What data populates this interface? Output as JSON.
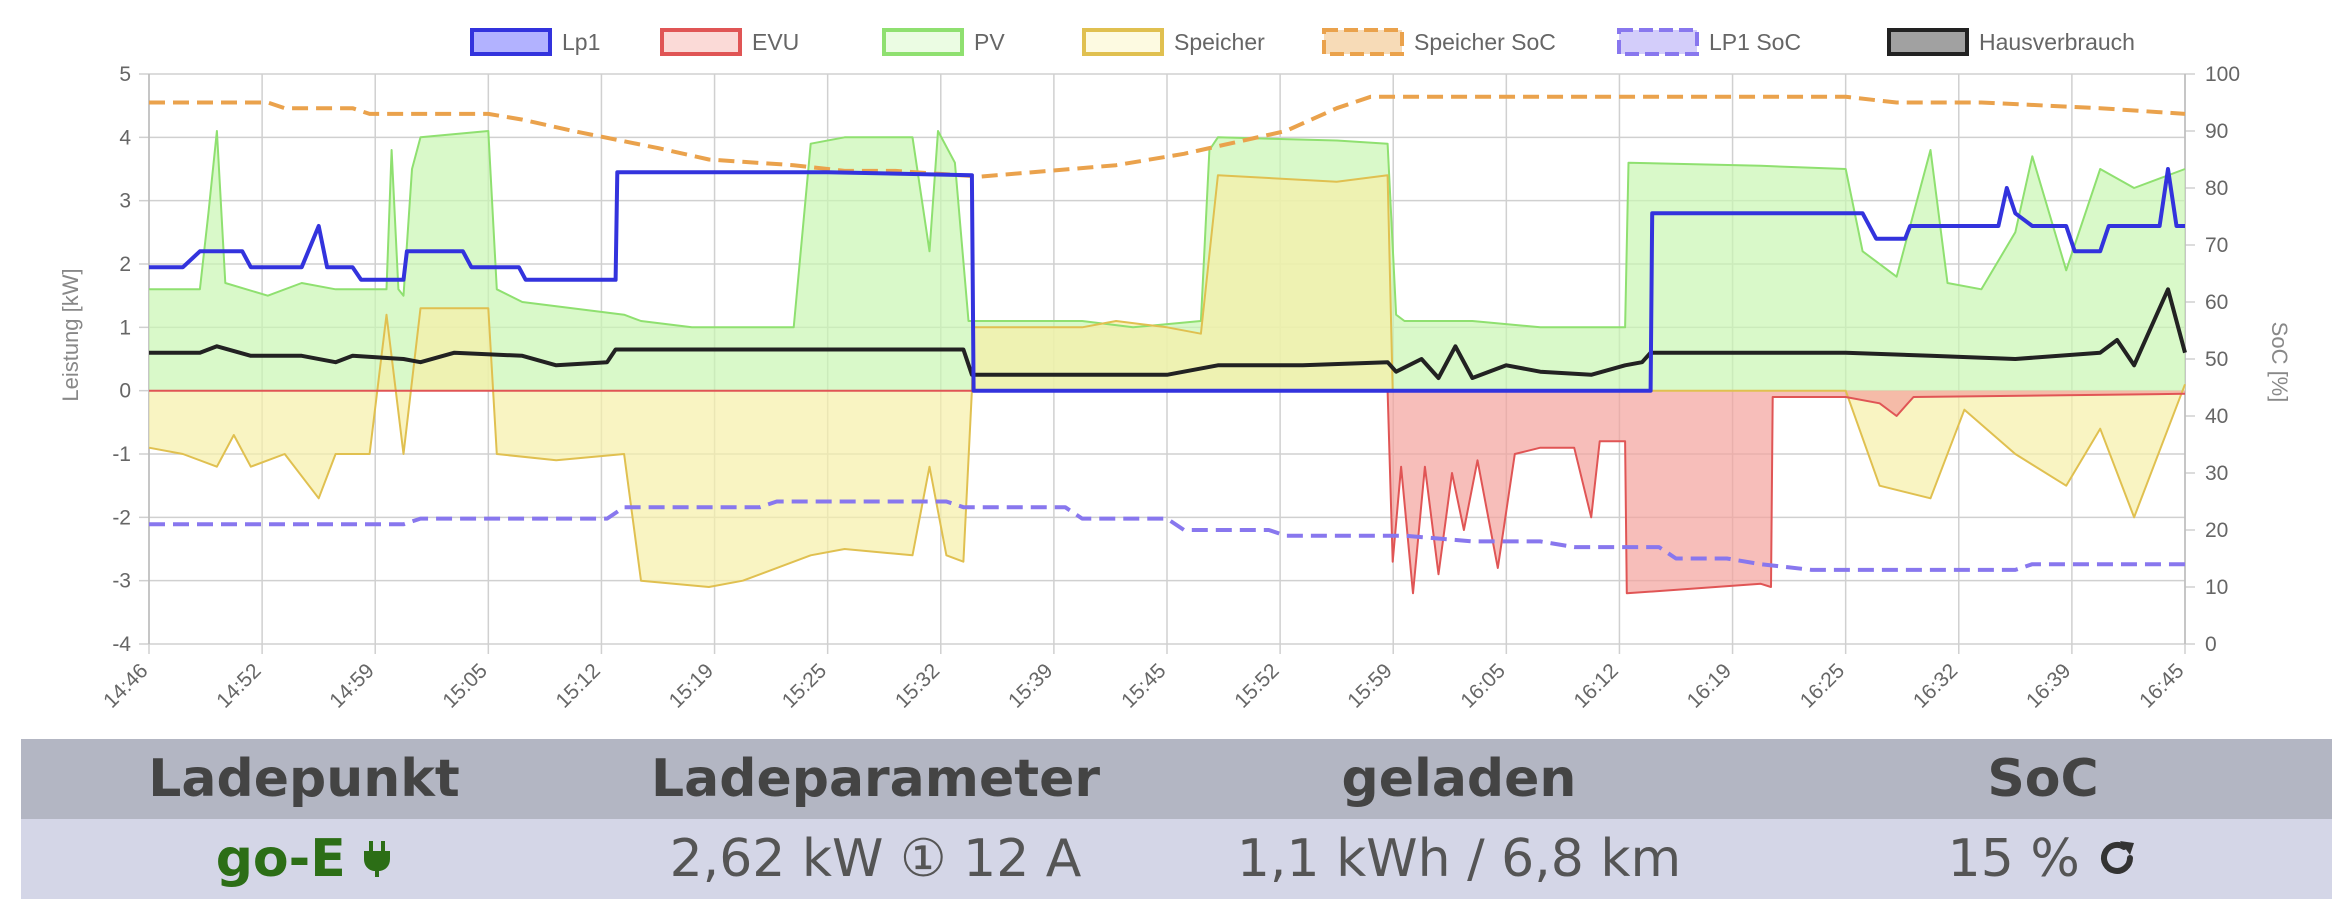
{
  "legend": [
    {
      "label": "Lp1",
      "color": "#3333dd",
      "fill": "#6666ff",
      "dashed": false
    },
    {
      "label": "EVU",
      "color": "#e05555",
      "fill": "#f7b5b0",
      "dashed": false
    },
    {
      "label": "PV",
      "color": "#8fe070",
      "fill": "#d8fac8",
      "dashed": false
    },
    {
      "label": "Speicher",
      "color": "#e0c050",
      "fill": "#fbf6c3",
      "dashed": false
    },
    {
      "label": "Speicher SoC",
      "color": "#eaa24c",
      "fill": "#f0b870",
      "dashed": true
    },
    {
      "label": "LP1 SoC",
      "color": "#8877ee",
      "fill": "#a79cf5",
      "dashed": true
    },
    {
      "label": "Hausverbrauch",
      "color": "#222222",
      "fill": "#444444",
      "dashed": false
    }
  ],
  "chart_data": {
    "type": "line",
    "title": "",
    "xlabel": "",
    "ylabel": "Leistung [kW]",
    "y2label": "SoC [%]",
    "ylim": [
      -4,
      5
    ],
    "y2lim": [
      0,
      100
    ],
    "x": [
      "14:46",
      "14:52",
      "14:59",
      "15:05",
      "15:12",
      "15:19",
      "15:25",
      "15:32",
      "15:39",
      "15:45",
      "15:52",
      "15:59",
      "16:05",
      "16:12",
      "16:19",
      "16:25",
      "16:32",
      "16:39",
      "16:45"
    ],
    "yticks": [
      "5",
      "4",
      "3",
      "2",
      "1",
      "0",
      "-1",
      "-2",
      "-3",
      "-4"
    ],
    "y2ticks": [
      "100",
      "90",
      "80",
      "70",
      "60",
      "50",
      "40",
      "30",
      "20",
      "10",
      "0"
    ],
    "grid": true,
    "legend_position": "top",
    "series": [
      {
        "name": "Lp1",
        "axis": "left",
        "values": [
          [
            0,
            1.95
          ],
          [
            2,
            1.95
          ],
          [
            3,
            2.2
          ],
          [
            5.5,
            2.2
          ],
          [
            6,
            1.95
          ],
          [
            9,
            1.95
          ],
          [
            10,
            2.6
          ],
          [
            10.5,
            1.95
          ],
          [
            12,
            1.95
          ],
          [
            12.5,
            1.75
          ],
          [
            15,
            1.75
          ],
          [
            15.2,
            2.2
          ],
          [
            18.5,
            2.2
          ],
          [
            19,
            1.95
          ],
          [
            21.8,
            1.95
          ],
          [
            22.2,
            1.75
          ],
          [
            27.5,
            1.75
          ],
          [
            27.6,
            3.45
          ],
          [
            40,
            3.45
          ],
          [
            48.5,
            3.4
          ],
          [
            48.6,
            0
          ],
          [
            88.5,
            0
          ],
          [
            88.6,
            2.8
          ],
          [
            101,
            2.8
          ],
          [
            101.8,
            2.4
          ],
          [
            103.5,
            2.4
          ],
          [
            103.8,
            2.6
          ],
          [
            109,
            2.6
          ],
          [
            109.5,
            3.2
          ],
          [
            110,
            2.8
          ],
          [
            111,
            2.6
          ],
          [
            113,
            2.6
          ],
          [
            113.5,
            2.2
          ],
          [
            115,
            2.2
          ],
          [
            115.5,
            2.6
          ],
          [
            117,
            2.6
          ],
          [
            118.5,
            2.6
          ],
          [
            119,
            3.5
          ],
          [
            119.5,
            2.6
          ],
          [
            120,
            2.6
          ]
        ]
      },
      {
        "name": "EVU",
        "axis": "left",
        "values": [
          [
            0,
            0
          ],
          [
            73,
            0
          ],
          [
            73.3,
            -2.7
          ],
          [
            73.8,
            -1.2
          ],
          [
            74.5,
            -3.2
          ],
          [
            75.2,
            -1.2
          ],
          [
            76,
            -2.9
          ],
          [
            76.8,
            -1.3
          ],
          [
            77.5,
            -2.2
          ],
          [
            78.3,
            -1.1
          ],
          [
            79.5,
            -2.8
          ],
          [
            80.5,
            -1.0
          ],
          [
            82,
            -0.9
          ],
          [
            84,
            -0.9
          ],
          [
            85,
            -2.0
          ],
          [
            85.5,
            -0.8
          ],
          [
            87,
            -0.8
          ],
          [
            87.1,
            -3.2
          ],
          [
            95,
            -3.05
          ],
          [
            95.6,
            -3.1
          ],
          [
            95.7,
            -0.1
          ],
          [
            100,
            -0.1
          ],
          [
            102,
            -0.2
          ],
          [
            103,
            -0.4
          ],
          [
            104,
            -0.1
          ],
          [
            120,
            -0.05
          ]
        ]
      },
      {
        "name": "PV",
        "axis": "left",
        "values": [
          [
            0,
            1.6
          ],
          [
            3,
            1.6
          ],
          [
            3.5,
            2.8
          ],
          [
            4,
            4.1
          ],
          [
            4.5,
            1.7
          ],
          [
            7,
            1.5
          ],
          [
            9,
            1.7
          ],
          [
            11,
            1.6
          ],
          [
            14,
            1.6
          ],
          [
            14.3,
            3.8
          ],
          [
            14.7,
            1.6
          ],
          [
            15,
            1.5
          ],
          [
            15.5,
            3.5
          ],
          [
            16,
            4.0
          ],
          [
            20,
            4.1
          ],
          [
            20.5,
            1.6
          ],
          [
            22,
            1.4
          ],
          [
            28,
            1.2
          ],
          [
            29,
            1.1
          ],
          [
            32,
            1.0
          ],
          [
            38,
            1.0
          ],
          [
            39,
            3.9
          ],
          [
            41,
            4.0
          ],
          [
            45,
            4.0
          ],
          [
            46,
            2.2
          ],
          [
            46.5,
            4.1
          ],
          [
            47.5,
            3.6
          ],
          [
            48.3,
            1.1
          ],
          [
            55,
            1.1
          ],
          [
            58,
            1.0
          ],
          [
            62,
            1.1
          ],
          [
            62.5,
            3.8
          ],
          [
            63,
            4.0
          ],
          [
            70,
            3.95
          ],
          [
            73,
            3.9
          ],
          [
            73.5,
            1.2
          ],
          [
            74,
            1.1
          ],
          [
            78,
            1.1
          ],
          [
            82,
            1.0
          ],
          [
            85,
            1.0
          ],
          [
            87,
            1.0
          ],
          [
            87.2,
            3.6
          ],
          [
            95,
            3.55
          ],
          [
            100,
            3.5
          ],
          [
            101,
            2.2
          ],
          [
            103,
            1.8
          ],
          [
            105,
            3.8
          ],
          [
            106,
            1.7
          ],
          [
            108,
            1.6
          ],
          [
            110,
            2.5
          ],
          [
            111,
            3.7
          ],
          [
            113,
            1.9
          ],
          [
            115,
            3.5
          ],
          [
            117,
            3.2
          ],
          [
            120,
            3.5
          ]
        ]
      },
      {
        "name": "Speicher",
        "axis": "left",
        "values": [
          [
            0,
            -0.9
          ],
          [
            2,
            -1.0
          ],
          [
            4,
            -1.2
          ],
          [
            5,
            -0.7
          ],
          [
            6,
            -1.2
          ],
          [
            8,
            -1.0
          ],
          [
            10,
            -1.7
          ],
          [
            11,
            -1.0
          ],
          [
            13,
            -1.0
          ],
          [
            14,
            1.2
          ],
          [
            15,
            -1.0
          ],
          [
            16,
            1.3
          ],
          [
            20,
            1.3
          ],
          [
            20.5,
            -1.0
          ],
          [
            24,
            -1.1
          ],
          [
            28,
            -1.0
          ],
          [
            29,
            -3.0
          ],
          [
            33,
            -3.1
          ],
          [
            35,
            -3.0
          ],
          [
            39,
            -2.6
          ],
          [
            41,
            -2.5
          ],
          [
            45,
            -2.6
          ],
          [
            46,
            -1.2
          ],
          [
            47,
            -2.6
          ],
          [
            48,
            -2.7
          ],
          [
            48.5,
            0
          ],
          [
            48.6,
            1.0
          ],
          [
            55,
            1.0
          ],
          [
            57,
            1.1
          ],
          [
            60,
            1.0
          ],
          [
            62,
            0.9
          ],
          [
            63,
            3.4
          ],
          [
            70,
            3.3
          ],
          [
            73,
            3.4
          ],
          [
            73.3,
            0
          ],
          [
            100,
            0
          ],
          [
            102,
            -1.5
          ],
          [
            105,
            -1.7
          ],
          [
            107,
            -0.3
          ],
          [
            110,
            -1.0
          ],
          [
            113,
            -1.5
          ],
          [
            115,
            -0.6
          ],
          [
            117,
            -2.0
          ],
          [
            120,
            0.1
          ]
        ]
      },
      {
        "name": "Speicher SoC",
        "axis": "right",
        "values": [
          [
            0,
            95
          ],
          [
            7,
            95
          ],
          [
            8,
            94
          ],
          [
            12,
            94
          ],
          [
            13,
            93
          ],
          [
            20,
            93
          ],
          [
            22,
            92
          ],
          [
            25,
            90
          ],
          [
            30,
            87
          ],
          [
            33,
            85
          ],
          [
            38,
            84
          ],
          [
            41,
            83
          ],
          [
            44,
            83
          ],
          [
            49,
            82
          ],
          [
            53,
            83
          ],
          [
            57,
            84
          ],
          [
            61,
            86
          ],
          [
            64,
            88
          ],
          [
            67,
            90
          ],
          [
            70,
            94
          ],
          [
            72,
            96
          ],
          [
            80,
            96
          ],
          [
            88,
            96
          ],
          [
            95,
            96
          ],
          [
            100,
            96
          ],
          [
            103,
            95
          ],
          [
            108,
            95
          ],
          [
            115,
            94
          ],
          [
            120,
            93
          ]
        ]
      },
      {
        "name": "LP1 SoC",
        "axis": "right",
        "values": [
          [
            0,
            21
          ],
          [
            15,
            21
          ],
          [
            16,
            22
          ],
          [
            27,
            22
          ],
          [
            28,
            24
          ],
          [
            36,
            24
          ],
          [
            37,
            25
          ],
          [
            47,
            25
          ],
          [
            48,
            24
          ],
          [
            54,
            24
          ],
          [
            55,
            22
          ],
          [
            60,
            22
          ],
          [
            61,
            20
          ],
          [
            66,
            20
          ],
          [
            67,
            19
          ],
          [
            74,
            19
          ],
          [
            78,
            18
          ],
          [
            82,
            18
          ],
          [
            84,
            17
          ],
          [
            89,
            17
          ],
          [
            90,
            15
          ],
          [
            93,
            15
          ],
          [
            95,
            14
          ],
          [
            98,
            13
          ],
          [
            100,
            13
          ],
          [
            110,
            13
          ],
          [
            111,
            14
          ],
          [
            120,
            14
          ]
        ]
      },
      {
        "name": "Hausverbrauch",
        "axis": "left",
        "values": [
          [
            0,
            0.6
          ],
          [
            3,
            0.6
          ],
          [
            4,
            0.7
          ],
          [
            6,
            0.55
          ],
          [
            9,
            0.55
          ],
          [
            11,
            0.45
          ],
          [
            12,
            0.55
          ],
          [
            15,
            0.5
          ],
          [
            16,
            0.45
          ],
          [
            18,
            0.6
          ],
          [
            22,
            0.55
          ],
          [
            24,
            0.4
          ],
          [
            27,
            0.45
          ],
          [
            27.5,
            0.65
          ],
          [
            33,
            0.65
          ],
          [
            38,
            0.65
          ],
          [
            40,
            0.65
          ],
          [
            48,
            0.65
          ],
          [
            48.5,
            0.25
          ],
          [
            55,
            0.25
          ],
          [
            60,
            0.25
          ],
          [
            63,
            0.4
          ],
          [
            68,
            0.4
          ],
          [
            73,
            0.45
          ],
          [
            73.5,
            0.3
          ],
          [
            75,
            0.5
          ],
          [
            76,
            0.2
          ],
          [
            77,
            0.7
          ],
          [
            78,
            0.2
          ],
          [
            80,
            0.4
          ],
          [
            82,
            0.3
          ],
          [
            85,
            0.25
          ],
          [
            87,
            0.4
          ],
          [
            88,
            0.45
          ],
          [
            88.5,
            0.6
          ],
          [
            95,
            0.6
          ],
          [
            100,
            0.6
          ],
          [
            105,
            0.55
          ],
          [
            110,
            0.5
          ],
          [
            115,
            0.6
          ],
          [
            116,
            0.8
          ],
          [
            117,
            0.4
          ],
          [
            119,
            1.6
          ],
          [
            120,
            0.6
          ]
        ]
      }
    ]
  },
  "table": {
    "headers": [
      "Ladepunkt",
      "Ladeparameter",
      "geladen",
      "SoC"
    ],
    "row": {
      "name": "go-E",
      "name_color": "#2c6e16",
      "plug_icon": "plug-icon",
      "parameter": "2,62 kW ① 12 A",
      "charged": "1,1 kWh / 6,8 km",
      "soc": "15 %",
      "refresh_icon": "refresh-icon"
    }
  }
}
